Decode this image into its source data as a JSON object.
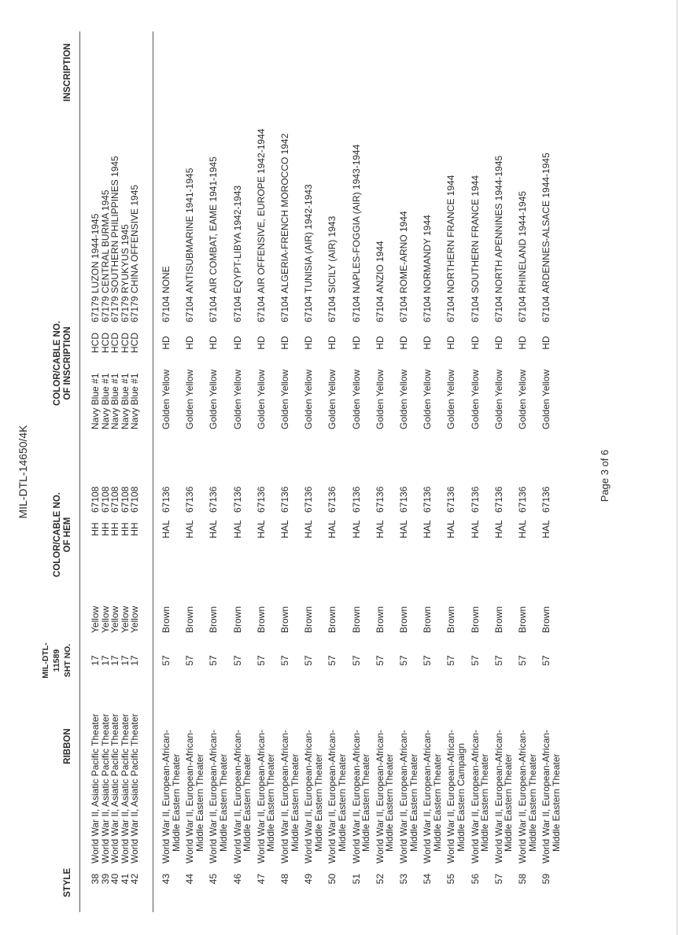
{
  "document_id": "MIL-DTL-14650/4K",
  "page_label": "Page 3 of 6",
  "headers": {
    "style": "STYLE",
    "ribbon": "RIBBON",
    "sht_no": [
      "MIL-DTL-",
      "11589",
      "SHT NO."
    ],
    "hem": [
      "COLOR/CABLE NO.",
      "OF HEM"
    ],
    "inscription_color": [
      "COLOR/CABLE NO.",
      "OF INSCRIPTION"
    ],
    "inscription": "INSCRIPTION"
  },
  "group1": [
    {
      "style": "38",
      "ribbon": [
        "World War II, Asiatic Pacific Theater"
      ],
      "sht": "17",
      "color": "Yellow",
      "hem_code": "HH",
      "hem_no": "67108",
      "ins_color": "Navy Blue #1",
      "ins_code": "HCD",
      "ins_no": "67179",
      "inscription": "LUZON 1944-1945"
    },
    {
      "style": "39",
      "ribbon": [
        "World War II, Asiatic Pacific Theater"
      ],
      "sht": "17",
      "color": "Yellow",
      "hem_code": "HH",
      "hem_no": "67108",
      "ins_color": "Navy Blue #1",
      "ins_code": "HCD",
      "ins_no": "67179",
      "inscription": "CENTRAL BURMA 1945"
    },
    {
      "style": "40",
      "ribbon": [
        "World War II, Asiatic Pacific Theater"
      ],
      "sht": "17",
      "color": "Yellow",
      "hem_code": "HH",
      "hem_no": "67108",
      "ins_color": "Navy Blue #1",
      "ins_code": "HCD",
      "ins_no": "67179",
      "inscription": "SOUTHERN PHILIPPINES 1945"
    },
    {
      "style": "41",
      "ribbon": [
        "World War II, Asiatic Pacific Theater"
      ],
      "sht": "17",
      "color": "Yellow",
      "hem_code": "HH",
      "hem_no": "67108",
      "ins_color": "Navy Blue #1",
      "ins_code": "HCD",
      "ins_no": "67179",
      "inscription": "RYUKYUS 1945"
    },
    {
      "style": "42",
      "ribbon": [
        "World War II, Asiatic Pacific Theater"
      ],
      "sht": "17",
      "color": "Yellow",
      "hem_code": "HH",
      "hem_no": "67108",
      "ins_color": "Navy Blue #1",
      "ins_code": "HCD",
      "ins_no": "67179",
      "inscription": "CHINA OFFENSIVE 1945"
    }
  ],
  "group2": [
    {
      "style": "43",
      "ribbon": [
        "World War II, European-African-",
        "Middle Eastern Theater"
      ],
      "sht": "57",
      "color": "Brown",
      "hem_code": "HAL",
      "hem_no": "67136",
      "ins_color": "Golden Yellow",
      "ins_code": "HD",
      "ins_no": "67104",
      "inscription": "NONE"
    },
    {
      "style": "44",
      "ribbon": [
        "World War II, European-African-",
        "Middle Eastern Theater"
      ],
      "sht": "57",
      "color": "Brown",
      "hem_code": "HAL",
      "hem_no": "67136",
      "ins_color": "Golden Yellow",
      "ins_code": "HD",
      "ins_no": "67104",
      "inscription": "ANTISUBMARINE 1941-1945"
    },
    {
      "style": "45",
      "ribbon": [
        "World War II, European-African-",
        "Middle Eastern Theater"
      ],
      "sht": "57",
      "color": "Brown",
      "hem_code": "HAL",
      "hem_no": "67136",
      "ins_color": "Golden Yellow",
      "ins_code": "HD",
      "ins_no": "67104",
      "inscription": "AIR COMBAT, EAME 1941-1945"
    },
    {
      "style": "46",
      "ribbon": [
        "World War II, European-African-",
        "Middle Eastern Theater"
      ],
      "sht": "57",
      "color": "Brown",
      "hem_code": "HAL",
      "hem_no": "67136",
      "ins_color": "Golden Yellow",
      "ins_code": "HD",
      "ins_no": "67104",
      "inscription": "EQYPT-LIBYA 1942-1943"
    },
    {
      "style": "47",
      "ribbon": [
        "World War II, European-African-",
        "Middle Eastern Theater"
      ],
      "sht": "57",
      "color": "Brown",
      "hem_code": "HAL",
      "hem_no": "67136",
      "ins_color": "Golden Yellow",
      "ins_code": "HD",
      "ins_no": "67104",
      "inscription": "AIR OFFENSIVE, EUROPE 1942-1944"
    },
    {
      "style": "48",
      "ribbon": [
        "World War II, European-African-",
        "Middle Eastern Theater"
      ],
      "sht": "57",
      "color": "Brown",
      "hem_code": "HAL",
      "hem_no": "67136",
      "ins_color": "Golden Yellow",
      "ins_code": "HD",
      "ins_no": "67104",
      "inscription": "ALGERIA-FRENCH MOROCCO 1942"
    },
    {
      "style": "49",
      "ribbon": [
        "World War II, European-African-",
        "Middle Eastern Theater"
      ],
      "sht": "57",
      "color": "Brown",
      "hem_code": "HAL",
      "hem_no": "67136",
      "ins_color": "Golden Yellow",
      "ins_code": "HD",
      "ins_no": "67104",
      "inscription": "TUNISIA (AIR) 1942-1943"
    },
    {
      "style": "50",
      "ribbon": [
        "World War II, European-African-",
        "Middle Eastern Theater"
      ],
      "sht": "57",
      "color": "Brown",
      "hem_code": "HAL",
      "hem_no": "67136",
      "ins_color": "Golden Yellow",
      "ins_code": "HD",
      "ins_no": "67104",
      "inscription": "SICILY (AIR) 1943"
    },
    {
      "style": "51",
      "ribbon": [
        "World War II, European-African-",
        "Middle Eastern Theater"
      ],
      "sht": "57",
      "color": "Brown",
      "hem_code": "HAL",
      "hem_no": "67136",
      "ins_color": "Golden Yellow",
      "ins_code": "HD",
      "ins_no": "67104",
      "inscription": "NAPLES-FOGGIA (AIR) 1943-1944"
    },
    {
      "style": "52",
      "ribbon": [
        "World War II, European-African-",
        "Middle Eastern Theater"
      ],
      "sht": "57",
      "color": "Brown",
      "hem_code": "HAL",
      "hem_no": "67136",
      "ins_color": "Golden Yellow",
      "ins_code": "HD",
      "ins_no": "67104",
      "inscription": "ANZIO 1944"
    },
    {
      "style": "53",
      "ribbon": [
        "World War II, European-African-",
        "Middle Eastern Theater"
      ],
      "sht": "57",
      "color": "Brown",
      "hem_code": "HAL",
      "hem_no": "67136",
      "ins_color": "Golden Yellow",
      "ins_code": "HD",
      "ins_no": "67104",
      "inscription": "ROME-ARNO 1944"
    },
    {
      "style": "54",
      "ribbon": [
        "World War II, European-African-",
        "Middle Eastern Theater"
      ],
      "sht": "57",
      "color": "Brown",
      "hem_code": "HAL",
      "hem_no": "67136",
      "ins_color": "Golden Yellow",
      "ins_code": "HD",
      "ins_no": "67104",
      "inscription": "NORMANDY 1944"
    },
    {
      "style": "55",
      "ribbon": [
        "World War II, European-African-",
        "Middle Eastern Campaign"
      ],
      "sht": "57",
      "color": "Brown",
      "hem_code": "HAL",
      "hem_no": "67136",
      "ins_color": "Golden Yellow",
      "ins_code": "HD",
      "ins_no": "67104",
      "inscription": "NORTHERN FRANCE 1944"
    },
    {
      "style": "56",
      "ribbon": [
        "World War II, European-African-",
        "Middle Eastern Theater"
      ],
      "sht": "57",
      "color": "Brown",
      "hem_code": "HAL",
      "hem_no": "67136",
      "ins_color": "Golden Yellow",
      "ins_code": "HD",
      "ins_no": "67104",
      "inscription": "SOUTHERN FRANCE 1944"
    },
    {
      "style": "57",
      "ribbon": [
        "World War II, European-African-",
        "Middle Eastern Theater"
      ],
      "sht": "57",
      "color": "Brown",
      "hem_code": "HAL",
      "hem_no": "67136",
      "ins_color": "Golden Yellow",
      "ins_code": "HD",
      "ins_no": "67104",
      "inscription": "NORTH APENNINES 1944-1945"
    },
    {
      "style": "58",
      "ribbon": [
        "World War II, European-African-",
        "Middle Eastern Theater"
      ],
      "sht": "57",
      "color": "Brown",
      "hem_code": "HAL",
      "hem_no": "67136",
      "ins_color": "Golden Yellow",
      "ins_code": "HD",
      "ins_no": "67104",
      "inscription": "RHINELAND 1944-1945"
    },
    {
      "style": "59",
      "ribbon": [
        "World War II, European-African-",
        "Middle Eastern Theater"
      ],
      "sht": "57",
      "color": "Brown",
      "hem_code": "HAL",
      "hem_no": "67136",
      "ins_color": "Golden Yellow",
      "ins_code": "HD",
      "ins_no": "67104",
      "inscription": "ARDENNES-ALSACE 1944-1945"
    }
  ]
}
